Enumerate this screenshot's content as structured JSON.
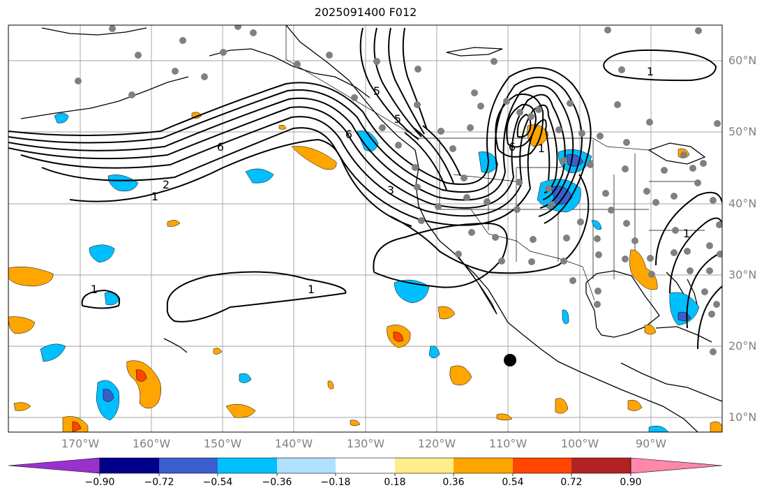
{
  "title": "2025091400 F012",
  "map": {
    "latitude_labels": [
      "60°N",
      "50°N",
      "40°N",
      "30°N",
      "20°N",
      "10°N"
    ],
    "longitude_labels": [
      "170°W",
      "160°W",
      "150°W",
      "140°W",
      "130°W",
      "120°W",
      "110°W",
      "100°W",
      "90°W"
    ],
    "contour_labels": [
      "1",
      "2",
      "6",
      "1",
      "5",
      "6",
      "3",
      "5",
      "6",
      "1",
      "1",
      "1",
      "1"
    ],
    "station_marker": "black-dot"
  },
  "colorbar": {
    "tick_labels": [
      "−0.90",
      "−0.72",
      "−0.54",
      "−0.36",
      "−0.18",
      "0.18",
      "0.36",
      "0.54",
      "0.72",
      "0.90"
    ],
    "colors": [
      "#9932CC",
      "#00008B",
      "#3A5FCD",
      "#00BFFF",
      "#B0E2FF",
      "#FFFFFF",
      "#FFEC8B",
      "#FFA500",
      "#FF4500",
      "#B22222",
      "#FF88AA"
    ]
  }
}
